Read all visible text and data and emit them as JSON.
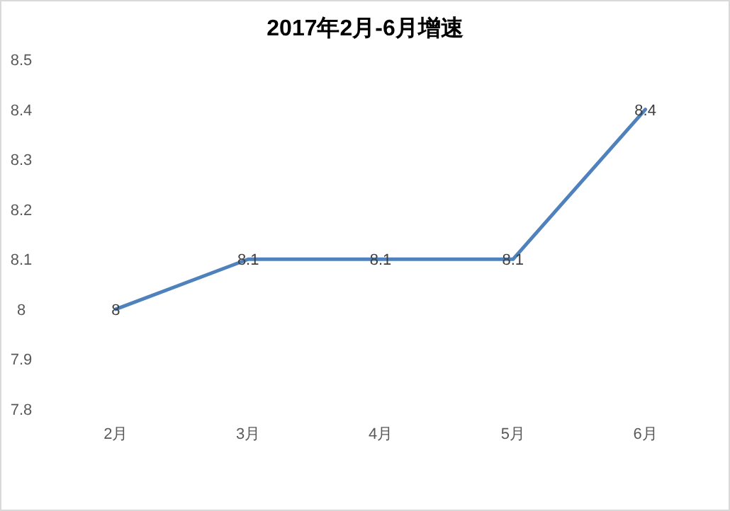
{
  "chart_data": {
    "type": "line",
    "title": "2017年2月-6月增速",
    "categories": [
      "2月",
      "3月",
      "4月",
      "5月",
      "6月"
    ],
    "values": [
      8,
      8.1,
      8.1,
      8.1,
      8.4
    ],
    "color": "#4f81bd",
    "ylim": [
      7.8,
      8.5
    ],
    "yticks": [
      7.8,
      7.9,
      8,
      8.1,
      8.2,
      8.3,
      8.4,
      8.5
    ],
    "data_labels": true
  }
}
